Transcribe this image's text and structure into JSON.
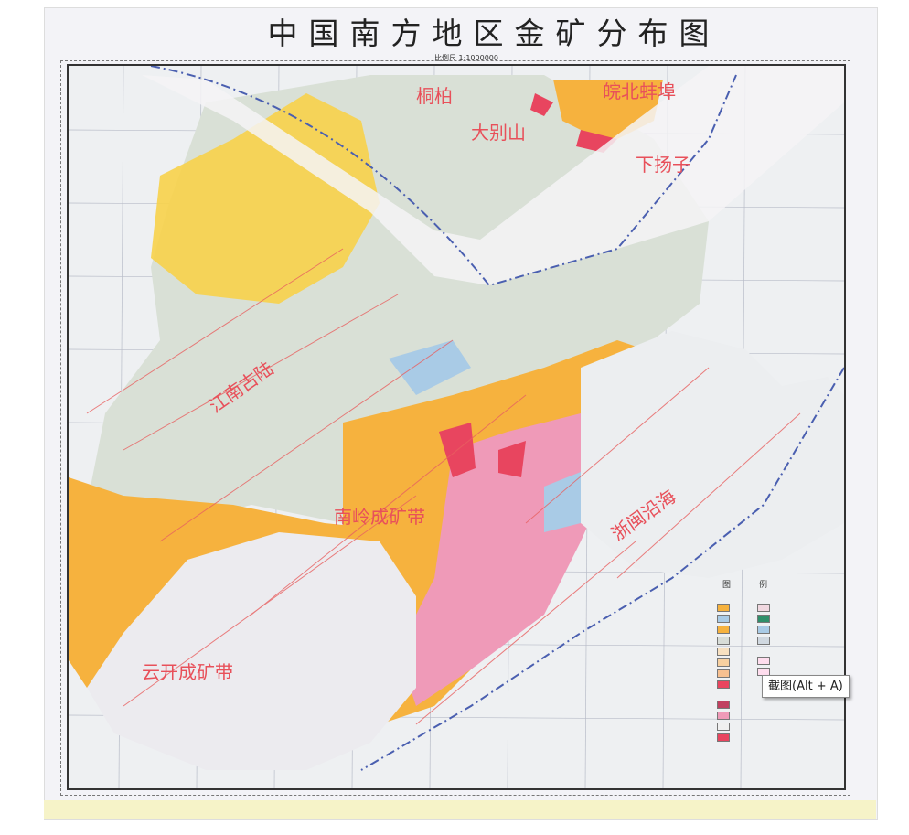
{
  "map": {
    "title": "中国南方地区金矿分布图",
    "scale": "比例尺 1:1000000",
    "region_labels": [
      "皖北蚌埠",
      "桐柏",
      "大别山",
      "下扬子",
      "江南古陆",
      "南岭成矿带",
      "云开成矿带",
      "浙闽沿海"
    ],
    "legend": {
      "title_left": "图",
      "title_right": "例"
    },
    "colors": {
      "granite_orange": "#f6b23e",
      "yellow": "#f7d24a",
      "pink": "#ef9ab8",
      "red": "#e8455f",
      "blue": "#a9cbe6",
      "grey": "#d8ddd8",
      "fault_red": "#e86060",
      "boundary_blue": "#4a5fb0"
    }
  },
  "tooltip": {
    "text": "截图(Alt + A)"
  }
}
